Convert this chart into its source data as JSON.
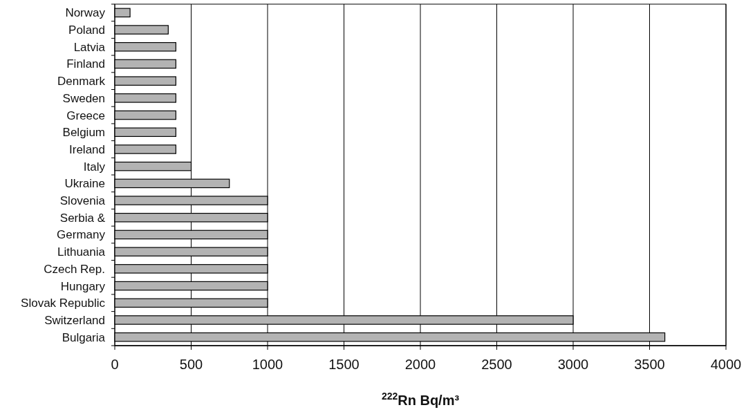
{
  "chart_data": {
    "type": "bar",
    "orientation": "horizontal",
    "xlabel": "$^{222}$Rn Bq/m³",
    "categories": [
      "Norway",
      "Poland",
      "Latvia",
      "Finland",
      "Denmark",
      "Sweden",
      "Greece",
      "Belgium",
      "Ireland",
      "Italy",
      "Ukraine",
      "Slovenia",
      "Serbia &",
      "Germany",
      "Lithuania",
      "Czech Rep.",
      "Hungary",
      "Slovak Republic",
      "Switzerland",
      "Bulgaria"
    ],
    "values": [
      100,
      350,
      400,
      400,
      400,
      400,
      400,
      400,
      400,
      500,
      750,
      1000,
      1000,
      1000,
      1000,
      1000,
      1000,
      1000,
      3000,
      3600
    ],
    "color": "#b3b3b3",
    "xlim": [
      0,
      4000
    ],
    "xticks": [
      0,
      500,
      1000,
      1500,
      2000,
      2500,
      3000,
      3500,
      4000
    ],
    "grid": "x"
  }
}
